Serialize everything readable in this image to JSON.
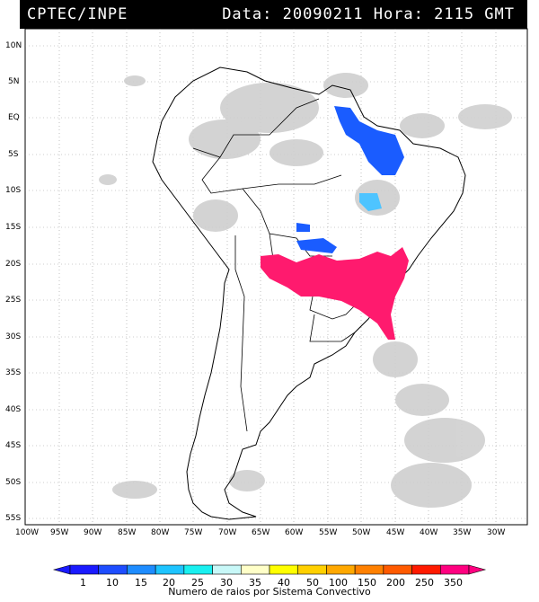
{
  "header": {
    "source": "CPTEC/INPE",
    "datetime": "Data: 20090211 Hora: 2115 GMT"
  },
  "lat_labels": [
    "10N",
    "5N",
    "EQ",
    "5S",
    "10S",
    "15S",
    "20S",
    "25S",
    "30S",
    "35S",
    "40S",
    "45S",
    "50S",
    "55S"
  ],
  "lon_labels": [
    "100W",
    "95W",
    "90W",
    "85W",
    "80W",
    "75W",
    "70W",
    "65W",
    "60W",
    "55W",
    "50W",
    "45W",
    "40W",
    "35W",
    "30W"
  ],
  "colorbar": {
    "title": "Numero de raios por Sistema Convectivo",
    "ticks": [
      "1",
      "10",
      "15",
      "20",
      "25",
      "30",
      "35",
      "40",
      "50",
      "100",
      "150",
      "200",
      "250",
      "350"
    ],
    "colors": [
      "#1a1aff",
      "#1e4dff",
      "#1e8cff",
      "#1ec4ff",
      "#19f0f0",
      "#c8f8f8",
      "#ffffc8",
      "#ffff00",
      "#ffd000",
      "#ffa800",
      "#ff8000",
      "#ff5a00",
      "#ff1a00",
      "#ff0080"
    ]
  },
  "colors": {
    "cloud": "#c8c8c8",
    "frame": "#000000",
    "grid": "#888888",
    "high_activity": "#ff1a6e",
    "low_activity": "#1a5cff"
  }
}
